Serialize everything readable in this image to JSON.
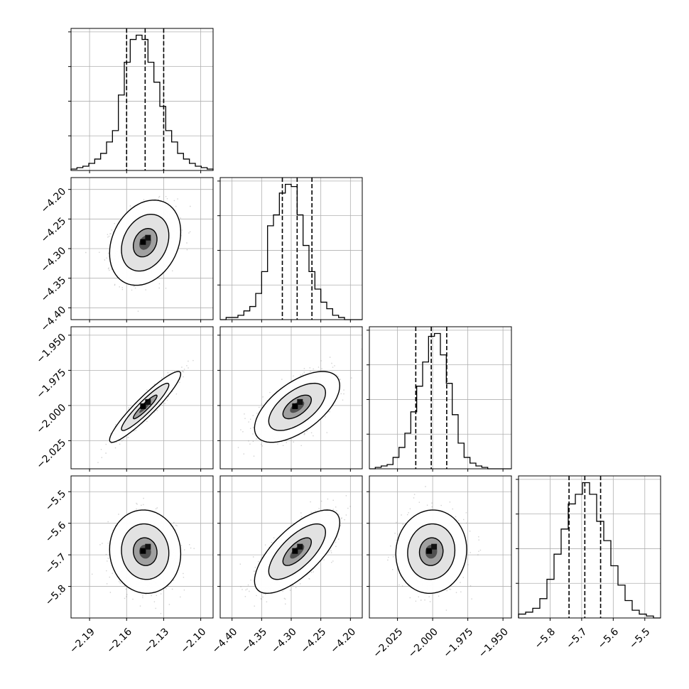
{
  "chart_data": {
    "type": "corner",
    "grid": true,
    "ndim": 4,
    "params": [
      {
        "range": [
          -2.205,
          -2.09
        ],
        "ticks": [
          "-2.19",
          "-2.16",
          "-2.13",
          "-2.10"
        ],
        "quantiles": [
          -2.16,
          -2.145,
          -2.13
        ],
        "hist": [
          1,
          2,
          3,
          5,
          8,
          12,
          20,
          28,
          53,
          76,
          92,
          95,
          92,
          76,
          62,
          45,
          28,
          20,
          12,
          8,
          5,
          3,
          2,
          1
        ]
      },
      {
        "range": [
          -4.42,
          -4.18
        ],
        "ticks": [
          "-4.40",
          "-4.35",
          "-4.30",
          "-4.25",
          "-4.20"
        ],
        "quantiles": [
          -4.315,
          -4.29,
          -4.265
        ],
        "hist": [
          0,
          1,
          1,
          2,
          4,
          6,
          12,
          22,
          43,
          48,
          58,
          62,
          61,
          48,
          34,
          22,
          14,
          8,
          5,
          2,
          1,
          0,
          0,
          0
        ]
      },
      {
        "range": [
          -2.045,
          -1.944
        ],
        "ticks": [
          "-2.025",
          "-2.000",
          "-1.975",
          "-1.950"
        ],
        "quantiles": [
          -2.012,
          -2.001,
          -1.99
        ],
        "hist": [
          0,
          1,
          2,
          3,
          8,
          15,
          25,
          40,
          58,
          75,
          93,
          95,
          80,
          60,
          38,
          18,
          8,
          4,
          2,
          1,
          0,
          0,
          0,
          0
        ]
      },
      {
        "range": [
          -5.9,
          -5.45
        ],
        "ticks": [
          "-5.8",
          "-5.7",
          "-5.6",
          "-5.5"
        ],
        "quantiles": [
          -5.74,
          -5.69,
          -5.64
        ],
        "hist": [
          2,
          3,
          5,
          10,
          20,
          33,
          46,
          59,
          64,
          70,
          64,
          50,
          40,
          27,
          17,
          9,
          4,
          2,
          1,
          0
        ]
      }
    ],
    "pairs": [
      {
        "row": 1,
        "col": 0,
        "mean": [
          -2.145,
          -4.29
        ],
        "sd": [
          0.012,
          0.03
        ],
        "rho": 0.25
      },
      {
        "row": 2,
        "col": 0,
        "mean": [
          -2.145,
          -2.001
        ],
        "sd": [
          0.012,
          0.0105
        ],
        "rho": 0.93
      },
      {
        "row": 2,
        "col": 1,
        "mean": [
          -4.29,
          -2.001
        ],
        "sd": [
          0.03,
          0.0105
        ],
        "rho": 0.6
      },
      {
        "row": 3,
        "col": 0,
        "mean": [
          -2.145,
          -5.69
        ],
        "sd": [
          0.012,
          0.055
        ],
        "rho": -0.05
      },
      {
        "row": 3,
        "col": 1,
        "mean": [
          -4.29,
          -5.69
        ],
        "sd": [
          0.03,
          0.055
        ],
        "rho": 0.7
      },
      {
        "row": 3,
        "col": 2,
        "mean": [
          -2.001,
          -5.69
        ],
        "sd": [
          0.0105,
          0.055
        ],
        "rho": 0.05
      }
    ],
    "contour_levels": [
      0.5,
      1.0,
      1.5
    ]
  }
}
